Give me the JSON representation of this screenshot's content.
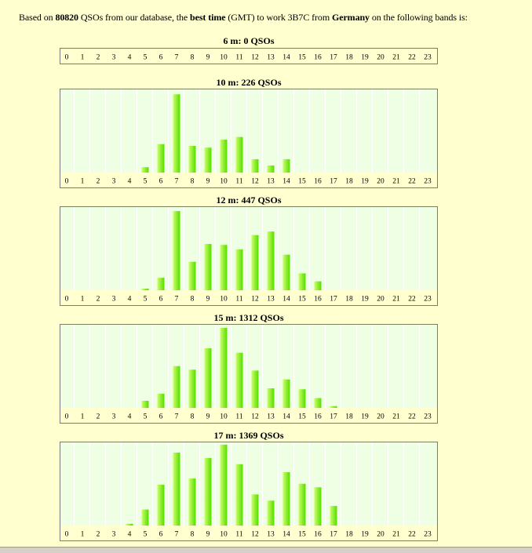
{
  "intro": {
    "prefix": "Based on",
    "qso_count": "80820",
    "mid1": "QSOs from our database, the",
    "best_time": "best time",
    "mid2": "(GMT) to work 3B7C from",
    "country": "Germany",
    "suffix": "on the following bands is:"
  },
  "colors": {
    "page_bg": "#ffffd0",
    "plot_bg": "#eeffe4",
    "bar_light": "#ccff66",
    "bar_dark": "#55dd00",
    "border": "#7a7a7a"
  },
  "chart_data": [
    {
      "type": "bar",
      "title": "6 m: 0 QSOs",
      "categories": [
        "0",
        "1",
        "2",
        "3",
        "4",
        "5",
        "6",
        "7",
        "8",
        "9",
        "10",
        "11",
        "12",
        "13",
        "14",
        "15",
        "16",
        "17",
        "18",
        "19",
        "20",
        "21",
        "22",
        "23"
      ],
      "values": [
        0,
        0,
        0,
        0,
        0,
        0,
        0,
        0,
        0,
        0,
        0,
        0,
        0,
        0,
        0,
        0,
        0,
        0,
        0,
        0,
        0,
        0,
        0,
        0
      ],
      "has_plot": false
    },
    {
      "type": "bar",
      "title": "10 m: 226 QSOs",
      "categories": [
        "0",
        "1",
        "2",
        "3",
        "4",
        "5",
        "6",
        "7",
        "8",
        "9",
        "10",
        "11",
        "12",
        "13",
        "14",
        "15",
        "16",
        "17",
        "18",
        "19",
        "20",
        "21",
        "22",
        "23"
      ],
      "values": [
        0,
        0,
        0,
        0,
        0,
        6,
        32,
        88,
        30,
        28,
        37,
        40,
        15,
        8,
        15,
        0,
        0,
        0,
        0,
        0,
        0,
        0,
        0,
        0
      ],
      "has_plot": true
    },
    {
      "type": "bar",
      "title": "12 m: 447 QSOs",
      "categories": [
        "0",
        "1",
        "2",
        "3",
        "4",
        "5",
        "6",
        "7",
        "8",
        "9",
        "10",
        "11",
        "12",
        "13",
        "14",
        "15",
        "16",
        "17",
        "18",
        "19",
        "20",
        "21",
        "22",
        "23"
      ],
      "values": [
        0,
        0,
        0,
        0,
        0,
        1,
        14,
        89,
        32,
        52,
        51,
        46,
        62,
        66,
        40,
        19,
        10,
        0,
        0,
        0,
        0,
        0,
        0,
        0
      ],
      "has_plot": true
    },
    {
      "type": "bar",
      "title": "15 m: 1312 QSOs",
      "categories": [
        "0",
        "1",
        "2",
        "3",
        "4",
        "5",
        "6",
        "7",
        "8",
        "9",
        "10",
        "11",
        "12",
        "13",
        "14",
        "15",
        "16",
        "17",
        "18",
        "19",
        "20",
        "21",
        "22",
        "23"
      ],
      "values": [
        0,
        0,
        0,
        0,
        0,
        8,
        16,
        47,
        43,
        67,
        90,
        62,
        42,
        22,
        32,
        21,
        11,
        2,
        0,
        0,
        0,
        0,
        0,
        0
      ],
      "has_plot": true
    },
    {
      "type": "bar",
      "title": "17 m: 1369 QSOs",
      "categories": [
        "0",
        "1",
        "2",
        "3",
        "4",
        "5",
        "6",
        "7",
        "8",
        "9",
        "10",
        "11",
        "12",
        "13",
        "14",
        "15",
        "16",
        "17",
        "18",
        "19",
        "20",
        "21",
        "22",
        "23"
      ],
      "values": [
        0,
        0,
        0,
        0,
        2,
        18,
        46,
        82,
        53,
        76,
        91,
        69,
        35,
        28,
        60,
        47,
        43,
        22,
        0,
        0,
        0,
        0,
        0,
        0
      ],
      "has_plot": true
    }
  ]
}
